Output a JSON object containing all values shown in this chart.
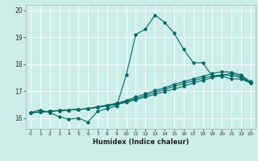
{
  "title": "",
  "xlabel": "Humidex (Indice chaleur)",
  "bg_color": "#cceee8",
  "line_color": "#006666",
  "grid_color": "#ffffff",
  "xlim": [
    -0.5,
    23.5
  ],
  "ylim": [
    15.6,
    20.2
  ],
  "yticks": [
    16,
    17,
    18,
    19,
    20
  ],
  "xticks": [
    0,
    1,
    2,
    3,
    4,
    5,
    6,
    7,
    8,
    9,
    10,
    11,
    12,
    13,
    14,
    15,
    16,
    17,
    18,
    19,
    20,
    21,
    22,
    23
  ],
  "line1_x": [
    0,
    1,
    2,
    3,
    4,
    5,
    6,
    7,
    8,
    9,
    10,
    11,
    12,
    13,
    14,
    15,
    16,
    17,
    18,
    19,
    20,
    21,
    22,
    23
  ],
  "line1_y": [
    16.2,
    16.3,
    16.2,
    16.05,
    15.95,
    16.0,
    15.85,
    16.25,
    16.35,
    16.45,
    17.6,
    19.1,
    19.3,
    19.82,
    19.55,
    19.15,
    18.55,
    18.05,
    18.05,
    17.55,
    17.55,
    17.45,
    17.45,
    17.3
  ],
  "line2_x": [
    0,
    1,
    2,
    3,
    4,
    5,
    6,
    7,
    8,
    9,
    10,
    11,
    12,
    13,
    14,
    15,
    16,
    17,
    18,
    19,
    20,
    21,
    22,
    23
  ],
  "line2_y": [
    16.2,
    16.22,
    16.25,
    16.28,
    16.3,
    16.32,
    16.35,
    16.4,
    16.45,
    16.5,
    16.58,
    16.68,
    16.78,
    16.88,
    16.98,
    17.08,
    17.18,
    17.3,
    17.4,
    17.5,
    17.6,
    17.65,
    17.55,
    17.3
  ],
  "line3_x": [
    0,
    1,
    2,
    3,
    4,
    5,
    6,
    7,
    8,
    9,
    10,
    11,
    12,
    13,
    14,
    15,
    16,
    17,
    18,
    19,
    20,
    21,
    22,
    23
  ],
  "line3_y": [
    16.2,
    16.22,
    16.25,
    16.28,
    16.3,
    16.32,
    16.35,
    16.42,
    16.48,
    16.55,
    16.65,
    16.78,
    16.9,
    17.02,
    17.12,
    17.25,
    17.35,
    17.45,
    17.55,
    17.65,
    17.72,
    17.7,
    17.6,
    17.35
  ],
  "line4_x": [
    0,
    1,
    2,
    3,
    4,
    5,
    6,
    7,
    8,
    9,
    10,
    11,
    12,
    13,
    14,
    15,
    16,
    17,
    18,
    19,
    20,
    21,
    22,
    23
  ],
  "line4_y": [
    16.2,
    16.22,
    16.25,
    16.27,
    16.3,
    16.32,
    16.34,
    16.4,
    16.46,
    16.52,
    16.62,
    16.72,
    16.84,
    16.95,
    17.06,
    17.18,
    17.28,
    17.38,
    17.48,
    17.56,
    17.6,
    17.58,
    17.5,
    17.3
  ]
}
